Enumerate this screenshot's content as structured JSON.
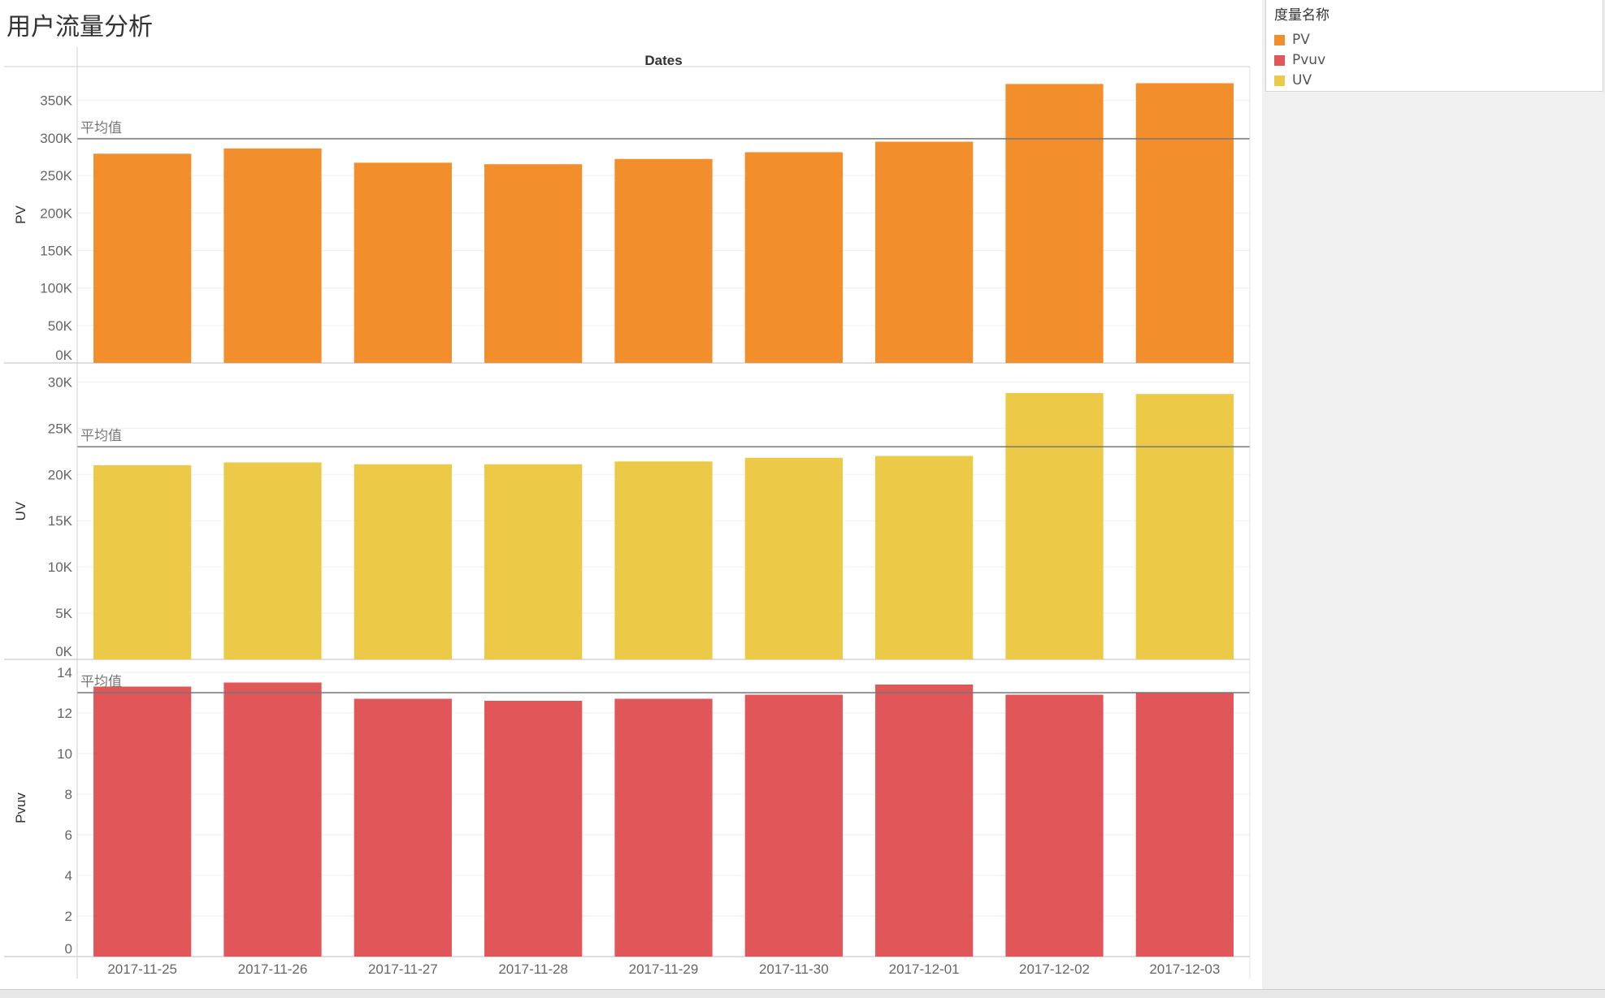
{
  "title": "用户流量分析",
  "legend": {
    "title": "度量名称",
    "items": [
      {
        "label": "PV",
        "color": "#f28e2b"
      },
      {
        "label": "Pvuv",
        "color": "#e15759"
      },
      {
        "label": "UV",
        "color": "#edc948"
      }
    ]
  },
  "chart_data": {
    "type": "bar",
    "column_header": "Dates",
    "categories": [
      "2017-11-25",
      "2017-11-26",
      "2017-11-27",
      "2017-11-28",
      "2017-11-29",
      "2017-11-30",
      "2017-12-01",
      "2017-12-02",
      "2017-12-03"
    ],
    "reference_line_label": "平均值",
    "grid": true,
    "legend_position": "right",
    "panels": [
      {
        "name": "PV",
        "ylabel": "PV",
        "color": "#f28e2b",
        "ylim": [
          0,
          380000
        ],
        "ticks": [
          0,
          50000,
          100000,
          150000,
          200000,
          250000,
          300000,
          350000
        ],
        "tick_labels": [
          "0K",
          "50K",
          "100K",
          "150K",
          "200K",
          "250K",
          "300K",
          "350K"
        ],
        "values": [
          279000,
          286000,
          267000,
          265000,
          272000,
          281000,
          295000,
          372000,
          373000
        ],
        "average": 299000
      },
      {
        "name": "UV",
        "ylabel": "UV",
        "color": "#edc948",
        "ylim": [
          0,
          31000
        ],
        "ticks": [
          0,
          5000,
          10000,
          15000,
          20000,
          25000,
          30000
        ],
        "tick_labels": [
          "0K",
          "5K",
          "10K",
          "15K",
          "20K",
          "25K",
          "30K"
        ],
        "values": [
          21000,
          21300,
          21100,
          21100,
          21400,
          21800,
          22000,
          28800,
          28700
        ],
        "average": 23000
      },
      {
        "name": "Pvuv",
        "ylabel": "Pvuv",
        "color": "#e15759",
        "ylim": [
          0,
          14
        ],
        "ticks": [
          0,
          2,
          4,
          6,
          8,
          10,
          12,
          14
        ],
        "tick_labels": [
          "0",
          "2",
          "4",
          "6",
          "8",
          "10",
          "12",
          "14"
        ],
        "values": [
          13.3,
          13.5,
          12.7,
          12.6,
          12.7,
          12.9,
          13.4,
          12.9,
          13.0
        ],
        "average": 13.0
      }
    ]
  }
}
